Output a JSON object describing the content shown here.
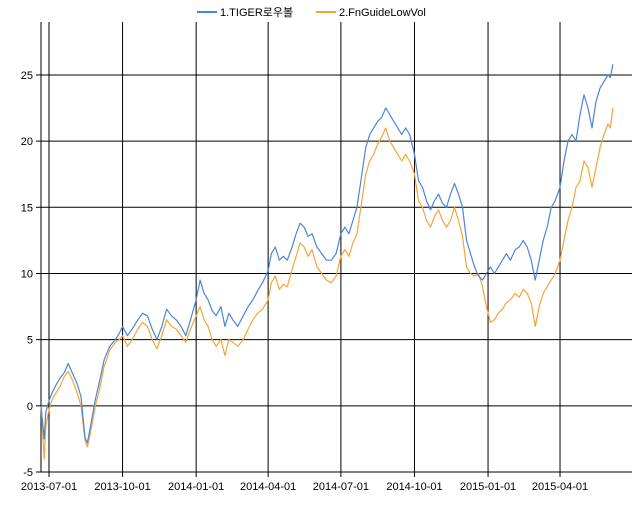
{
  "chart_data": {
    "type": "line",
    "title": "",
    "xlabel": "",
    "ylabel": "",
    "legend_position": "top-center",
    "grid": true,
    "ylim": [
      -5,
      29
    ],
    "xlim": [
      "2013-06-21",
      "2015-06-30"
    ],
    "y_ticks": [
      -5,
      0,
      5,
      10,
      15,
      20,
      25
    ],
    "x_ticks": [
      "2013-07-01",
      "2013-10-01",
      "2014-01-01",
      "2014-04-01",
      "2014-07-01",
      "2014-10-01",
      "2015-01-01",
      "2015-04-01"
    ],
    "series": [
      {
        "name": "1.TIGER로우볼",
        "color": "#4a86d8",
        "points": [
          [
            "2013-06-21",
            0.0
          ],
          [
            "2013-06-25",
            -2.5
          ],
          [
            "2013-06-27",
            -0.5
          ],
          [
            "2013-07-01",
            0.4
          ],
          [
            "2013-07-05",
            1.0
          ],
          [
            "2013-07-10",
            1.6
          ],
          [
            "2013-07-15",
            2.1
          ],
          [
            "2013-07-20",
            2.5
          ],
          [
            "2013-07-25",
            3.2
          ],
          [
            "2013-07-30",
            2.5
          ],
          [
            "2013-08-05",
            1.7
          ],
          [
            "2013-08-10",
            0.7
          ],
          [
            "2013-08-15",
            -2.4
          ],
          [
            "2013-08-18",
            -2.8
          ],
          [
            "2013-08-22",
            -1.5
          ],
          [
            "2013-08-28",
            0.5
          ],
          [
            "2013-09-02",
            1.8
          ],
          [
            "2013-09-08",
            3.5
          ],
          [
            "2013-09-15",
            4.5
          ],
          [
            "2013-09-22",
            5.0
          ],
          [
            "2013-09-27",
            5.5
          ],
          [
            "2013-10-01",
            6.0
          ],
          [
            "2013-10-07",
            5.3
          ],
          [
            "2013-10-13",
            5.8
          ],
          [
            "2013-10-20",
            6.5
          ],
          [
            "2013-10-26",
            7.0
          ],
          [
            "2013-11-01",
            6.8
          ],
          [
            "2013-11-07",
            5.8
          ],
          [
            "2013-11-13",
            5.0
          ],
          [
            "2013-11-19",
            6.0
          ],
          [
            "2013-11-25",
            7.3
          ],
          [
            "2013-12-01",
            6.8
          ],
          [
            "2013-12-07",
            6.5
          ],
          [
            "2013-12-13",
            6.0
          ],
          [
            "2013-12-19",
            5.3
          ],
          [
            "2013-12-25",
            6.5
          ],
          [
            "2014-01-01",
            8.0
          ],
          [
            "2014-01-06",
            9.5
          ],
          [
            "2014-01-11",
            8.5
          ],
          [
            "2014-01-16",
            8.0
          ],
          [
            "2014-01-21",
            7.2
          ],
          [
            "2014-01-26",
            6.8
          ],
          [
            "2014-02-01",
            7.5
          ],
          [
            "2014-02-06",
            6.0
          ],
          [
            "2014-02-11",
            7.0
          ],
          [
            "2014-02-16",
            6.5
          ],
          [
            "2014-02-22",
            6.0
          ],
          [
            "2014-03-01",
            6.8
          ],
          [
            "2014-03-07",
            7.5
          ],
          [
            "2014-03-13",
            8.0
          ],
          [
            "2014-03-19",
            8.7
          ],
          [
            "2014-03-25",
            9.3
          ],
          [
            "2014-04-01",
            10.2
          ],
          [
            "2014-04-05",
            11.5
          ],
          [
            "2014-04-10",
            12.0
          ],
          [
            "2014-04-15",
            11.0
          ],
          [
            "2014-04-20",
            11.3
          ],
          [
            "2014-04-25",
            11.0
          ],
          [
            "2014-05-01",
            12.0
          ],
          [
            "2014-05-06",
            13.0
          ],
          [
            "2014-05-11",
            13.8
          ],
          [
            "2014-05-16",
            13.5
          ],
          [
            "2014-05-21",
            12.8
          ],
          [
            "2014-05-26",
            13.0
          ],
          [
            "2014-06-01",
            12.0
          ],
          [
            "2014-06-07",
            11.5
          ],
          [
            "2014-06-13",
            11.0
          ],
          [
            "2014-06-19",
            11.0
          ],
          [
            "2014-06-25",
            11.5
          ],
          [
            "2014-07-01",
            13.0
          ],
          [
            "2014-07-06",
            13.5
          ],
          [
            "2014-07-11",
            13.0
          ],
          [
            "2014-07-16",
            14.0
          ],
          [
            "2014-07-21",
            15.0
          ],
          [
            "2014-07-26",
            17.0
          ],
          [
            "2014-08-01",
            19.5
          ],
          [
            "2014-08-06",
            20.5
          ],
          [
            "2014-08-11",
            21.0
          ],
          [
            "2014-08-16",
            21.5
          ],
          [
            "2014-08-21",
            21.8
          ],
          [
            "2014-08-26",
            22.5
          ],
          [
            "2014-08-31",
            22.0
          ],
          [
            "2014-09-05",
            21.5
          ],
          [
            "2014-09-10",
            21.0
          ],
          [
            "2014-09-15",
            20.5
          ],
          [
            "2014-09-20",
            21.0
          ],
          [
            "2014-09-25",
            20.5
          ],
          [
            "2014-10-01",
            19.0
          ],
          [
            "2014-10-06",
            17.0
          ],
          [
            "2014-10-11",
            16.5
          ],
          [
            "2014-10-16",
            15.5
          ],
          [
            "2014-10-21",
            14.8
          ],
          [
            "2014-10-26",
            15.5
          ],
          [
            "2014-10-31",
            16.0
          ],
          [
            "2014-11-05",
            15.3
          ],
          [
            "2014-11-10",
            15.0
          ],
          [
            "2014-11-15",
            16.0
          ],
          [
            "2014-11-20",
            16.8
          ],
          [
            "2014-11-25",
            16.0
          ],
          [
            "2014-11-30",
            15.0
          ],
          [
            "2014-12-05",
            12.5
          ],
          [
            "2014-12-10",
            11.5
          ],
          [
            "2014-12-15",
            10.5
          ],
          [
            "2014-12-20",
            9.8
          ],
          [
            "2014-12-25",
            9.5
          ],
          [
            "2014-12-30",
            10.0
          ],
          [
            "2015-01-04",
            10.5
          ],
          [
            "2015-01-09",
            10.0
          ],
          [
            "2015-01-14",
            10.5
          ],
          [
            "2015-01-19",
            11.0
          ],
          [
            "2015-01-24",
            11.5
          ],
          [
            "2015-01-29",
            11.0
          ],
          [
            "2015-02-04",
            11.8
          ],
          [
            "2015-02-09",
            12.0
          ],
          [
            "2015-02-14",
            12.5
          ],
          [
            "2015-02-19",
            12.0
          ],
          [
            "2015-02-24",
            11.0
          ],
          [
            "2015-03-01",
            9.5
          ],
          [
            "2015-03-06",
            11.0
          ],
          [
            "2015-03-11",
            12.5
          ],
          [
            "2015-03-16",
            13.5
          ],
          [
            "2015-03-21",
            15.0
          ],
          [
            "2015-03-26",
            15.5
          ],
          [
            "2015-04-01",
            16.5
          ],
          [
            "2015-04-06",
            18.5
          ],
          [
            "2015-04-11",
            20.0
          ],
          [
            "2015-04-16",
            20.5
          ],
          [
            "2015-04-21",
            20.0
          ],
          [
            "2015-04-26",
            22.0
          ],
          [
            "2015-05-01",
            23.5
          ],
          [
            "2015-05-06",
            22.5
          ],
          [
            "2015-05-11",
            21.0
          ],
          [
            "2015-05-16",
            23.0
          ],
          [
            "2015-05-21",
            24.0
          ],
          [
            "2015-05-26",
            24.5
          ],
          [
            "2015-05-31",
            25.0
          ],
          [
            "2015-06-03",
            24.8
          ],
          [
            "2015-06-06",
            25.8
          ]
        ]
      },
      {
        "name": "2.FnGuideLowVol",
        "color": "#f6a33b",
        "points": [
          [
            "2013-06-21",
            0.0
          ],
          [
            "2013-06-25",
            -4.0
          ],
          [
            "2013-06-27",
            -1.5
          ],
          [
            "2013-07-01",
            -0.3
          ],
          [
            "2013-07-05",
            0.5
          ],
          [
            "2013-07-10",
            1.0
          ],
          [
            "2013-07-15",
            1.5
          ],
          [
            "2013-07-20",
            2.2
          ],
          [
            "2013-07-25",
            2.6
          ],
          [
            "2013-07-30",
            2.0
          ],
          [
            "2013-08-05",
            1.0
          ],
          [
            "2013-08-10",
            0.0
          ],
          [
            "2013-08-15",
            -2.6
          ],
          [
            "2013-08-18",
            -3.1
          ],
          [
            "2013-08-22",
            -2.0
          ],
          [
            "2013-08-28",
            0.0
          ],
          [
            "2013-09-02",
            1.2
          ],
          [
            "2013-09-08",
            3.0
          ],
          [
            "2013-09-15",
            4.2
          ],
          [
            "2013-09-22",
            4.8
          ],
          [
            "2013-09-27",
            5.0
          ],
          [
            "2013-10-01",
            5.3
          ],
          [
            "2013-10-07",
            4.5
          ],
          [
            "2013-10-13",
            5.0
          ],
          [
            "2013-10-20",
            5.8
          ],
          [
            "2013-10-26",
            6.3
          ],
          [
            "2013-11-01",
            6.0
          ],
          [
            "2013-11-07",
            5.0
          ],
          [
            "2013-11-13",
            4.3
          ],
          [
            "2013-11-19",
            5.3
          ],
          [
            "2013-11-25",
            6.5
          ],
          [
            "2013-12-01",
            6.0
          ],
          [
            "2013-12-07",
            5.8
          ],
          [
            "2013-12-13",
            5.3
          ],
          [
            "2013-12-19",
            4.8
          ],
          [
            "2013-12-25",
            5.8
          ],
          [
            "2014-01-01",
            6.8
          ],
          [
            "2014-01-06",
            7.5
          ],
          [
            "2014-01-11",
            6.5
          ],
          [
            "2014-01-16",
            6.0
          ],
          [
            "2014-01-21",
            5.0
          ],
          [
            "2014-01-26",
            4.5
          ],
          [
            "2014-02-01",
            5.0
          ],
          [
            "2014-02-06",
            3.8
          ],
          [
            "2014-02-11",
            5.0
          ],
          [
            "2014-02-16",
            4.8
          ],
          [
            "2014-02-22",
            4.5
          ],
          [
            "2014-03-01",
            5.0
          ],
          [
            "2014-03-07",
            5.8
          ],
          [
            "2014-03-13",
            6.5
          ],
          [
            "2014-03-19",
            7.0
          ],
          [
            "2014-03-25",
            7.3
          ],
          [
            "2014-04-01",
            8.0
          ],
          [
            "2014-04-05",
            9.3
          ],
          [
            "2014-04-10",
            9.8
          ],
          [
            "2014-04-15",
            8.8
          ],
          [
            "2014-04-20",
            9.2
          ],
          [
            "2014-04-25",
            9.0
          ],
          [
            "2014-05-01",
            10.3
          ],
          [
            "2014-05-06",
            11.3
          ],
          [
            "2014-05-11",
            12.3
          ],
          [
            "2014-05-16",
            12.0
          ],
          [
            "2014-05-21",
            11.3
          ],
          [
            "2014-05-26",
            11.8
          ],
          [
            "2014-06-01",
            10.5
          ],
          [
            "2014-06-07",
            10.0
          ],
          [
            "2014-06-13",
            9.5
          ],
          [
            "2014-06-19",
            9.3
          ],
          [
            "2014-06-25",
            9.8
          ],
          [
            "2014-07-01",
            11.3
          ],
          [
            "2014-07-06",
            11.8
          ],
          [
            "2014-07-11",
            11.3
          ],
          [
            "2014-07-16",
            12.3
          ],
          [
            "2014-07-21",
            13.0
          ],
          [
            "2014-07-26",
            15.0
          ],
          [
            "2014-08-01",
            17.5
          ],
          [
            "2014-08-06",
            18.5
          ],
          [
            "2014-08-11",
            19.0
          ],
          [
            "2014-08-16",
            19.8
          ],
          [
            "2014-08-21",
            20.3
          ],
          [
            "2014-08-26",
            21.0
          ],
          [
            "2014-08-31",
            20.0
          ],
          [
            "2014-09-05",
            19.5
          ],
          [
            "2014-09-10",
            19.0
          ],
          [
            "2014-09-15",
            18.5
          ],
          [
            "2014-09-20",
            19.0
          ],
          [
            "2014-09-25",
            18.5
          ],
          [
            "2014-10-01",
            17.5
          ],
          [
            "2014-10-06",
            15.5
          ],
          [
            "2014-10-11",
            15.0
          ],
          [
            "2014-10-16",
            14.0
          ],
          [
            "2014-10-21",
            13.5
          ],
          [
            "2014-10-26",
            14.3
          ],
          [
            "2014-10-31",
            14.8
          ],
          [
            "2014-11-05",
            14.0
          ],
          [
            "2014-11-10",
            13.5
          ],
          [
            "2014-11-15",
            14.0
          ],
          [
            "2014-11-20",
            15.0
          ],
          [
            "2014-11-25",
            14.0
          ],
          [
            "2014-11-30",
            12.8
          ],
          [
            "2014-12-05",
            10.5
          ],
          [
            "2014-12-10",
            10.0
          ],
          [
            "2014-12-15",
            9.8
          ],
          [
            "2014-12-20",
            10.0
          ],
          [
            "2014-12-25",
            9.0
          ],
          [
            "2014-12-30",
            7.5
          ],
          [
            "2015-01-04",
            6.3
          ],
          [
            "2015-01-09",
            6.5
          ],
          [
            "2015-01-14",
            7.0
          ],
          [
            "2015-01-19",
            7.3
          ],
          [
            "2015-01-24",
            7.8
          ],
          [
            "2015-01-29",
            8.0
          ],
          [
            "2015-02-04",
            8.5
          ],
          [
            "2015-02-09",
            8.2
          ],
          [
            "2015-02-14",
            8.8
          ],
          [
            "2015-02-19",
            8.5
          ],
          [
            "2015-02-24",
            7.8
          ],
          [
            "2015-03-01",
            6.0
          ],
          [
            "2015-03-06",
            7.5
          ],
          [
            "2015-03-11",
            8.5
          ],
          [
            "2015-03-16",
            9.0
          ],
          [
            "2015-03-21",
            9.5
          ],
          [
            "2015-03-26",
            10.0
          ],
          [
            "2015-04-01",
            11.0
          ],
          [
            "2015-04-06",
            12.5
          ],
          [
            "2015-04-11",
            14.0
          ],
          [
            "2015-04-16",
            15.0
          ],
          [
            "2015-04-21",
            16.5
          ],
          [
            "2015-04-26",
            17.0
          ],
          [
            "2015-05-01",
            18.5
          ],
          [
            "2015-05-06",
            18.0
          ],
          [
            "2015-05-11",
            16.5
          ],
          [
            "2015-05-16",
            18.0
          ],
          [
            "2015-05-21",
            19.5
          ],
          [
            "2015-05-26",
            20.5
          ],
          [
            "2015-05-31",
            21.3
          ],
          [
            "2015-06-03",
            21.0
          ],
          [
            "2015-06-06",
            22.5
          ]
        ]
      }
    ]
  }
}
